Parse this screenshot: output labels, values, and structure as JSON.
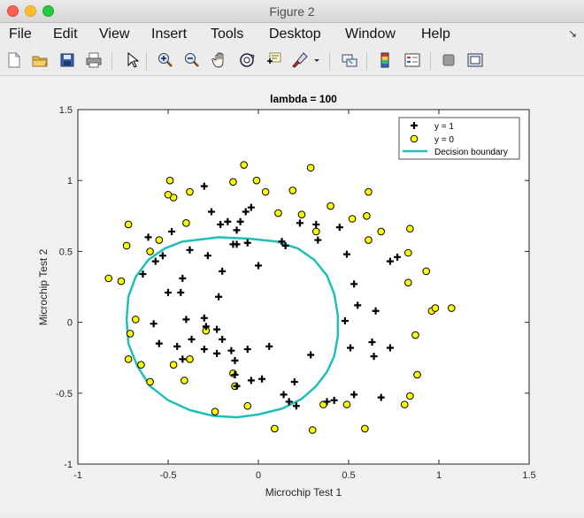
{
  "window": {
    "title": "Figure 2"
  },
  "menu": [
    "File",
    "Edit",
    "View",
    "Insert",
    "Tools",
    "Desktop",
    "Window",
    "Help"
  ],
  "toolbar_icons": [
    "new-figure-icon",
    "open-file-icon",
    "save-icon",
    "print-icon",
    "pointer-icon",
    "zoom-in-icon",
    "zoom-out-icon",
    "pan-icon",
    "rotate-3d-icon",
    "data-cursor-icon",
    "brush-icon",
    "brush-dropdown-icon",
    "link-plot-icon",
    "colorbar-icon",
    "legend-icon",
    "hide-plot-tools-icon",
    "show-plot-tools-icon"
  ],
  "colors": {
    "positive_marker": "#000000",
    "negative_marker_fill": "#ffff00",
    "decision_boundary": "#1fbfb8"
  },
  "chart_data": {
    "type": "scatter",
    "title": "lambda = 100",
    "xlabel": "Microchip Test 1",
    "ylabel": "Microchip Test 2",
    "xlim": [
      -1,
      1.5
    ],
    "ylim": [
      -1,
      1.5
    ],
    "xticks": [
      "-1",
      "-0.5",
      "0",
      "0.5",
      "1",
      "1.5"
    ],
    "yticks": [
      "-1",
      "-0.5",
      "0",
      "0.5",
      "1",
      "1.5"
    ],
    "grid": false,
    "legend_position": "top-right",
    "series": [
      {
        "name": "y = 1",
        "marker": "plus",
        "points": [
          [
            -0.61,
            0.6
          ],
          [
            -0.53,
            0.47
          ],
          [
            -0.48,
            0.64
          ],
          [
            -0.57,
            0.43
          ],
          [
            -0.64,
            0.34
          ],
          [
            -0.38,
            0.51
          ],
          [
            -0.28,
            0.47
          ],
          [
            -0.42,
            0.31
          ],
          [
            -0.5,
            0.21
          ],
          [
            -0.43,
            0.21
          ],
          [
            -0.4,
            0.02
          ],
          [
            -0.3,
            0.03
          ],
          [
            -0.22,
            0.18
          ],
          [
            -0.26,
            0.78
          ],
          [
            -0.21,
            0.69
          ],
          [
            -0.17,
            0.71
          ],
          [
            -0.1,
            0.71
          ],
          [
            -0.12,
            0.65
          ],
          [
            -0.14,
            0.55
          ],
          [
            -0.12,
            0.55
          ],
          [
            -0.07,
            0.78
          ],
          [
            -0.04,
            0.81
          ],
          [
            -0.2,
            0.36
          ],
          [
            -0.3,
            0.96
          ],
          [
            -0.06,
            0.56
          ],
          [
            0.0,
            0.4
          ],
          [
            0.13,
            0.57
          ],
          [
            0.15,
            0.54
          ],
          [
            0.23,
            0.7
          ],
          [
            0.32,
            0.69
          ],
          [
            0.33,
            0.58
          ],
          [
            0.45,
            0.67
          ],
          [
            0.49,
            0.48
          ],
          [
            0.53,
            0.27
          ],
          [
            0.55,
            0.12
          ],
          [
            0.65,
            0.08
          ],
          [
            0.73,
            0.43
          ],
          [
            0.77,
            0.46
          ],
          [
            0.48,
            0.01
          ],
          [
            0.63,
            -0.14
          ],
          [
            0.73,
            -0.18
          ],
          [
            0.64,
            -0.24
          ],
          [
            0.51,
            -0.18
          ],
          [
            0.53,
            -0.51
          ],
          [
            0.68,
            -0.53
          ],
          [
            0.42,
            -0.55
          ],
          [
            0.38,
            -0.56
          ],
          [
            0.14,
            -0.51
          ],
          [
            0.2,
            -0.42
          ],
          [
            0.29,
            -0.23
          ],
          [
            0.17,
            -0.56
          ],
          [
            0.21,
            -0.59
          ],
          [
            -0.04,
            -0.41
          ],
          [
            -0.13,
            -0.27
          ],
          [
            -0.13,
            -0.37
          ],
          [
            -0.15,
            -0.2
          ],
          [
            -0.3,
            -0.19
          ],
          [
            -0.23,
            -0.22
          ],
          [
            -0.29,
            -0.03
          ],
          [
            -0.06,
            -0.19
          ],
          [
            0.06,
            -0.17
          ],
          [
            -0.42,
            -0.26
          ],
          [
            -0.45,
            -0.17
          ],
          [
            -0.58,
            -0.01
          ],
          [
            -0.55,
            -0.15
          ],
          [
            -0.2,
            -0.12
          ],
          [
            -0.23,
            -0.05
          ],
          [
            -0.12,
            -0.45
          ],
          [
            0.02,
            -0.4
          ],
          [
            -0.37,
            -0.12
          ]
        ]
      },
      {
        "name": "y = 0",
        "marker": "circle",
        "points": [
          [
            -0.83,
            0.31
          ],
          [
            -0.76,
            0.29
          ],
          [
            -0.72,
            0.69
          ],
          [
            -0.73,
            0.54
          ],
          [
            -0.6,
            0.5
          ],
          [
            -0.55,
            0.58
          ],
          [
            -0.47,
            0.88
          ],
          [
            -0.5,
            0.9
          ],
          [
            -0.49,
            1.0
          ],
          [
            -0.38,
            0.92
          ],
          [
            -0.4,
            0.7
          ],
          [
            -0.14,
            0.99
          ],
          [
            -0.08,
            1.11
          ],
          [
            -0.01,
            1.0
          ],
          [
            0.04,
            0.92
          ],
          [
            0.11,
            0.77
          ],
          [
            0.19,
            0.93
          ],
          [
            0.24,
            0.76
          ],
          [
            0.29,
            1.09
          ],
          [
            0.4,
            0.82
          ],
          [
            0.52,
            0.73
          ],
          [
            0.61,
            0.92
          ],
          [
            0.6,
            0.75
          ],
          [
            0.68,
            0.64
          ],
          [
            0.84,
            0.66
          ],
          [
            0.61,
            0.58
          ],
          [
            0.83,
            0.49
          ],
          [
            0.93,
            0.36
          ],
          [
            0.83,
            0.28
          ],
          [
            0.96,
            0.08
          ],
          [
            0.98,
            0.1
          ],
          [
            1.07,
            0.1
          ],
          [
            0.87,
            -0.09
          ],
          [
            0.88,
            -0.37
          ],
          [
            0.84,
            -0.52
          ],
          [
            0.81,
            -0.58
          ],
          [
            0.59,
            -0.75
          ],
          [
            0.49,
            -0.58
          ],
          [
            0.36,
            -0.58
          ],
          [
            0.3,
            -0.76
          ],
          [
            0.09,
            -0.75
          ],
          [
            -0.06,
            -0.59
          ],
          [
            -0.24,
            -0.63
          ],
          [
            -0.13,
            -0.45
          ],
          [
            -0.14,
            -0.36
          ],
          [
            -0.38,
            -0.26
          ],
          [
            -0.41,
            -0.41
          ],
          [
            -0.6,
            -0.42
          ],
          [
            -0.65,
            -0.3
          ],
          [
            -0.72,
            -0.26
          ],
          [
            -0.71,
            -0.08
          ],
          [
            -0.68,
            0.02
          ],
          [
            -0.29,
            -0.06
          ],
          [
            0.32,
            0.64
          ],
          [
            -0.47,
            -0.3
          ]
        ]
      },
      {
        "name": "Decision boundary",
        "marker": "line",
        "points": [
          [
            -0.35,
            0.58
          ],
          [
            -0.22,
            0.6
          ],
          [
            -0.05,
            0.59
          ],
          [
            0.1,
            0.57
          ],
          [
            0.22,
            0.52
          ],
          [
            0.31,
            0.44
          ],
          [
            0.38,
            0.33
          ],
          [
            0.42,
            0.2
          ],
          [
            0.44,
            0.05
          ],
          [
            0.44,
            -0.1
          ],
          [
            0.42,
            -0.24
          ],
          [
            0.38,
            -0.35
          ],
          [
            0.32,
            -0.45
          ],
          [
            0.24,
            -0.54
          ],
          [
            0.13,
            -0.61
          ],
          [
            0.0,
            -0.65
          ],
          [
            -0.12,
            -0.67
          ],
          [
            -0.25,
            -0.66
          ],
          [
            -0.38,
            -0.62
          ],
          [
            -0.5,
            -0.55
          ],
          [
            -0.6,
            -0.45
          ],
          [
            -0.67,
            -0.31
          ],
          [
            -0.72,
            -0.15
          ],
          [
            -0.73,
            0.02
          ],
          [
            -0.72,
            0.18
          ],
          [
            -0.68,
            0.32
          ],
          [
            -0.61,
            0.44
          ],
          [
            -0.52,
            0.52
          ],
          [
            -0.42,
            0.57
          ],
          [
            -0.35,
            0.58
          ]
        ]
      }
    ]
  }
}
